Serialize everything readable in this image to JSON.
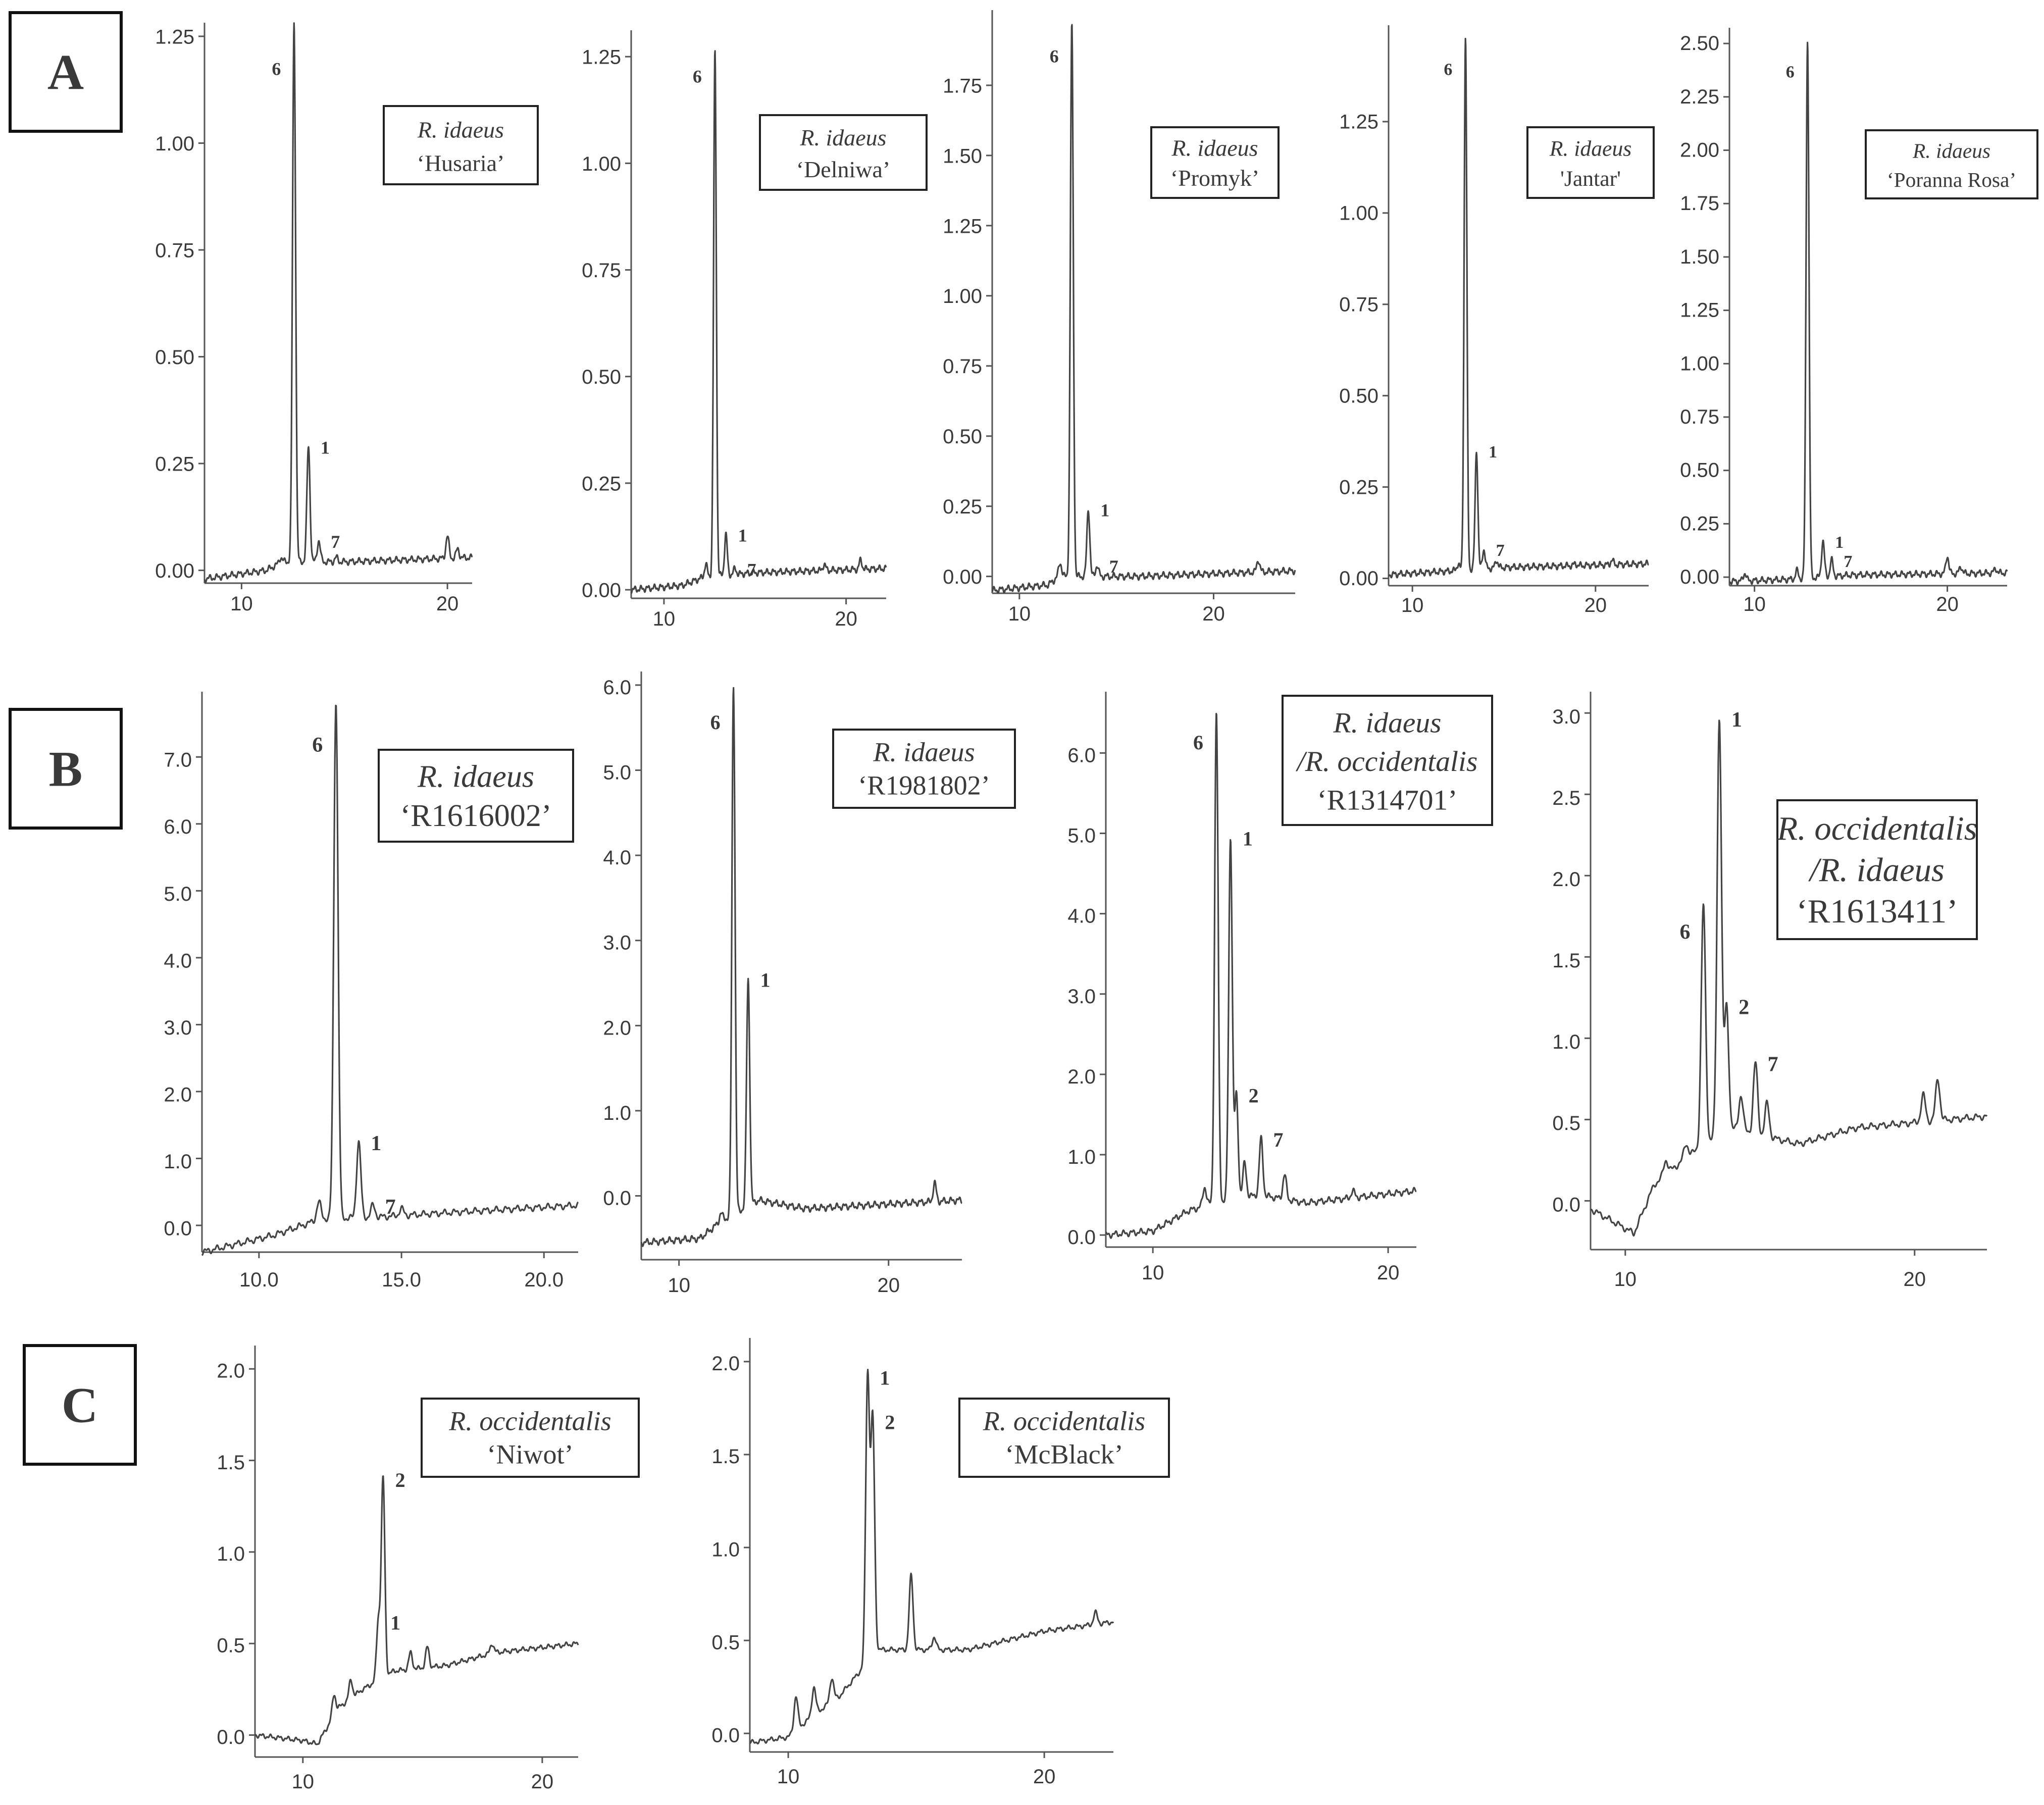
{
  "row_labels": [
    "A",
    "B",
    "C"
  ],
  "chart_data": [
    {
      "type": "line",
      "panel": "A",
      "species": "R. idaeus",
      "cultivar": "‘Husaria’",
      "xlim": [
        8.2,
        21.2
      ],
      "ylim": [
        -0.03,
        1.27
      ],
      "x_ticks": [
        {
          "v": 10,
          "t": "10"
        },
        {
          "v": 20,
          "t": "20"
        }
      ],
      "y_ticks": [
        {
          "v": 0,
          "t": "0.00"
        },
        {
          "v": 0.25,
          "t": "0.25"
        },
        {
          "v": 0.5,
          "t": "0.50"
        },
        {
          "v": 0.75,
          "t": "0.75"
        },
        {
          "v": 1.0,
          "t": "1.00"
        },
        {
          "v": 1.25,
          "t": "1.25"
        }
      ],
      "baseline": [
        [
          8.2,
          -0.02
        ],
        [
          11.2,
          0.0
        ],
        [
          12.0,
          0.02
        ],
        [
          15.0,
          0.02
        ],
        [
          21.2,
          0.03
        ]
      ],
      "peaks": [
        {
          "label": "6",
          "x": 12.55,
          "y": 1.28
        },
        {
          "label": "1",
          "x": 13.25,
          "y": 0.29
        },
        {
          "label": "7",
          "x": 13.75,
          "y": 0.07
        },
        {
          "label": "",
          "x": 11.9,
          "y": 0.03
        },
        {
          "label": "",
          "x": 20.0,
          "y": 0.08
        },
        {
          "label": "",
          "x": 20.5,
          "y": 0.05
        },
        {
          "label": "",
          "x": 14.6,
          "y": 0.03
        }
      ]
    },
    {
      "type": "line",
      "panel": "A",
      "species": "R. idaeus",
      "cultivar": "‘Delniwa’",
      "xlim": [
        8.2,
        22.2
      ],
      "ylim": [
        -0.02,
        1.3
      ],
      "x_ticks": [
        {
          "v": 10,
          "t": "10"
        },
        {
          "v": 20,
          "t": "20"
        }
      ],
      "y_ticks": [
        {
          "v": 0,
          "t": "0.00"
        },
        {
          "v": 0.25,
          "t": "0.25"
        },
        {
          "v": 0.5,
          "t": "0.50"
        },
        {
          "v": 0.75,
          "t": "0.75"
        },
        {
          "v": 1.0,
          "t": "1.00"
        },
        {
          "v": 1.25,
          "t": "1.25"
        }
      ],
      "baseline": [
        [
          8.2,
          0.0
        ],
        [
          11.0,
          0.01
        ],
        [
          12.2,
          0.03
        ],
        [
          15.0,
          0.04
        ],
        [
          22.2,
          0.05
        ]
      ],
      "peaks": [
        {
          "label": "6",
          "x": 12.8,
          "y": 1.26
        },
        {
          "label": "1",
          "x": 13.4,
          "y": 0.13
        },
        {
          "label": "7",
          "x": 13.9,
          "y": 0.05
        },
        {
          "label": "",
          "x": 12.3,
          "y": 0.06
        },
        {
          "label": "",
          "x": 18.8,
          "y": 0.06
        },
        {
          "label": "",
          "x": 20.8,
          "y": 0.07
        }
      ]
    },
    {
      "type": "line",
      "panel": "A",
      "species": "R. idaeus",
      "cultivar": "‘Promyk’",
      "xlim": [
        8.6,
        24.2
      ],
      "ylim": [
        -0.06,
        2.0
      ],
      "x_ticks": [
        {
          "v": 10,
          "t": "10"
        },
        {
          "v": 20,
          "t": "20"
        }
      ],
      "y_ticks": [
        {
          "v": 0,
          "t": "0.00"
        },
        {
          "v": 0.25,
          "t": "0.25"
        },
        {
          "v": 0.5,
          "t": "0.50"
        },
        {
          "v": 0.75,
          "t": "0.75"
        },
        {
          "v": 1.0,
          "t": "1.00"
        },
        {
          "v": 1.25,
          "t": "1.25"
        },
        {
          "v": 1.5,
          "t": "1.50"
        },
        {
          "v": 1.75,
          "t": "1.75"
        }
      ],
      "baseline": [
        [
          8.6,
          -0.05
        ],
        [
          11.5,
          -0.03
        ],
        [
          12.0,
          0.0
        ],
        [
          16.0,
          0.0
        ],
        [
          24.2,
          0.02
        ]
      ],
      "peaks": [
        {
          "label": "6",
          "x": 12.7,
          "y": 1.97
        },
        {
          "label": "1",
          "x": 13.55,
          "y": 0.24
        },
        {
          "label": "7",
          "x": 14.0,
          "y": 0.04
        },
        {
          "label": "",
          "x": 12.1,
          "y": 0.05
        },
        {
          "label": "",
          "x": 22.3,
          "y": 0.06
        }
      ]
    },
    {
      "type": "line",
      "panel": "A",
      "species": "R. idaeus",
      "cultivar": "'Jantar'",
      "xlim": [
        8.7,
        22.9
      ],
      "ylim": [
        -0.02,
        1.5
      ],
      "x_ticks": [
        {
          "v": 10,
          "t": "10"
        },
        {
          "v": 20,
          "t": "20"
        }
      ],
      "y_ticks": [
        {
          "v": 0,
          "t": "0.00"
        },
        {
          "v": 0.25,
          "t": "0.25"
        },
        {
          "v": 0.5,
          "t": "0.50"
        },
        {
          "v": 0.75,
          "t": "0.75"
        },
        {
          "v": 1.0,
          "t": "1.00"
        },
        {
          "v": 1.25,
          "t": "1.25"
        }
      ],
      "baseline": [
        [
          8.7,
          0.01
        ],
        [
          12.0,
          0.02
        ],
        [
          15.0,
          0.03
        ],
        [
          22.9,
          0.04
        ]
      ],
      "peaks": [
        {
          "label": "6",
          "x": 12.9,
          "y": 1.48
        },
        {
          "label": "1",
          "x": 13.5,
          "y": 0.35
        },
        {
          "label": "7",
          "x": 13.9,
          "y": 0.08
        },
        {
          "label": "",
          "x": 12.5,
          "y": 0.04
        },
        {
          "label": "",
          "x": 14.6,
          "y": 0.05
        },
        {
          "label": "",
          "x": 20.9,
          "y": 0.05
        },
        {
          "label": "",
          "x": 18.9,
          "y": 0.04
        }
      ]
    },
    {
      "type": "line",
      "panel": "A",
      "species": "R. idaeus",
      "cultivar": "‘Poranna Rosa’",
      "xlim": [
        8.7,
        23.1
      ],
      "ylim": [
        -0.04,
        2.55
      ],
      "x_ticks": [
        {
          "v": 10,
          "t": "10"
        },
        {
          "v": 20,
          "t": "20"
        }
      ],
      "y_ticks": [
        {
          "v": 0,
          "t": "0.00"
        },
        {
          "v": 0.25,
          "t": "0.25"
        },
        {
          "v": 0.5,
          "t": "0.50"
        },
        {
          "v": 0.75,
          "t": "0.75"
        },
        {
          "v": 1.0,
          "t": "1.00"
        },
        {
          "v": 1.25,
          "t": "1.25"
        },
        {
          "v": 1.5,
          "t": "1.50"
        },
        {
          "v": 1.75,
          "t": "1.75"
        },
        {
          "v": 2.0,
          "t": "2.00"
        },
        {
          "v": 2.25,
          "t": "2.25"
        },
        {
          "v": 2.5,
          "t": "2.50"
        }
      ],
      "baseline": [
        [
          8.7,
          -0.02
        ],
        [
          12.0,
          -0.01
        ],
        [
          15.0,
          0.01
        ],
        [
          23.1,
          0.02
        ]
      ],
      "peaks": [
        {
          "label": "6",
          "x": 12.75,
          "y": 2.52
        },
        {
          "label": "1",
          "x": 13.55,
          "y": 0.17
        },
        {
          "label": "7",
          "x": 14.0,
          "y": 0.08
        },
        {
          "label": "",
          "x": 12.2,
          "y": 0.03
        },
        {
          "label": "",
          "x": 9.5,
          "y": 0.02
        },
        {
          "label": "",
          "x": 20.0,
          "y": 0.1
        },
        {
          "label": "",
          "x": 20.7,
          "y": 0.05
        },
        {
          "label": "",
          "x": 22.5,
          "y": 0.04
        }
      ]
    },
    {
      "type": "line",
      "panel": "B",
      "species": "R. idaeus",
      "cultivar": "‘R1616002’",
      "xlim": [
        8.0,
        21.2
      ],
      "ylim": [
        -0.4,
        7.9
      ],
      "x_ticks": [
        {
          "v": 10,
          "t": "10.0"
        },
        {
          "v": 15,
          "t": "15.0"
        },
        {
          "v": 20,
          "t": "20.0"
        }
      ],
      "y_ticks": [
        {
          "v": 0,
          "t": "0.0"
        },
        {
          "v": 1,
          "t": "1.0"
        },
        {
          "v": 2,
          "t": "2.0"
        },
        {
          "v": 3,
          "t": "3.0"
        },
        {
          "v": 4,
          "t": "4.0"
        },
        {
          "v": 5,
          "t": "5.0"
        },
        {
          "v": 6,
          "t": "6.0"
        },
        {
          "v": 7,
          "t": "7.0"
        }
      ],
      "baseline": [
        [
          8.0,
          -0.4
        ],
        [
          10.5,
          -0.15
        ],
        [
          12.2,
          0.1
        ],
        [
          14.0,
          0.12
        ],
        [
          17.0,
          0.2
        ],
        [
          21.2,
          0.3
        ]
      ],
      "peaks": [
        {
          "label": "6",
          "x": 12.7,
          "y": 7.85
        },
        {
          "label": "1",
          "x": 13.5,
          "y": 1.25
        },
        {
          "label": "7",
          "x": 14.0,
          "y": 0.3
        },
        {
          "label": "",
          "x": 12.1,
          "y": 0.35
        },
        {
          "label": "",
          "x": 15.0,
          "y": 0.25
        }
      ]
    },
    {
      "type": "line",
      "panel": "B",
      "species": "R. idaeus",
      "cultivar": "‘R1981802’",
      "xlim": [
        8.2,
        23.5
      ],
      "ylim": [
        -0.75,
        6.1
      ],
      "x_ticks": [
        {
          "v": 10,
          "t": "10"
        },
        {
          "v": 20,
          "t": "20"
        }
      ],
      "y_ticks": [
        {
          "v": 0,
          "t": "0.0"
        },
        {
          "v": 1,
          "t": "1.0"
        },
        {
          "v": 2,
          "t": "2.0"
        },
        {
          "v": 3,
          "t": "3.0"
        },
        {
          "v": 4,
          "t": "4.0"
        },
        {
          "v": 5,
          "t": "5.0"
        },
        {
          "v": 6,
          "t": "6.0"
        }
      ],
      "baseline": [
        [
          8.2,
          -0.55
        ],
        [
          11.0,
          -0.5
        ],
        [
          12.0,
          -0.3
        ],
        [
          13.8,
          -0.05
        ],
        [
          16.0,
          -0.15
        ],
        [
          23.5,
          -0.05
        ]
      ],
      "peaks": [
        {
          "label": "6",
          "x": 12.6,
          "y": 6.0
        },
        {
          "label": "1",
          "x": 13.3,
          "y": 2.55
        },
        {
          "label": "",
          "x": 12.0,
          "y": -0.2
        },
        {
          "label": "",
          "x": 22.2,
          "y": 0.15
        }
      ]
    },
    {
      "type": "line",
      "panel": "B",
      "species": "R. idaeus",
      "species2": "/R. occidentalis",
      "cultivar": "‘R1314701’",
      "xlim": [
        8.0,
        21.2
      ],
      "ylim": [
        -0.15,
        6.7
      ],
      "x_ticks": [
        {
          "v": 10,
          "t": "10"
        },
        {
          "v": 20,
          "t": "20"
        }
      ],
      "y_ticks": [
        {
          "v": 0,
          "t": "0.0"
        },
        {
          "v": 1,
          "t": "1.0"
        },
        {
          "v": 2,
          "t": "2.0"
        },
        {
          "v": 3,
          "t": "3.0"
        },
        {
          "v": 4,
          "t": "4.0"
        },
        {
          "v": 5,
          "t": "5.0"
        },
        {
          "v": 6,
          "t": "6.0"
        }
      ],
      "baseline": [
        [
          8.0,
          0.0
        ],
        [
          10.0,
          0.05
        ],
        [
          11.5,
          0.3
        ],
        [
          12.6,
          0.4
        ],
        [
          14.5,
          0.5
        ],
        [
          16.5,
          0.4
        ],
        [
          21.2,
          0.55
        ]
      ],
      "peaks": [
        {
          "label": "6",
          "x": 12.7,
          "y": 6.5
        },
        {
          "label": "1",
          "x": 13.3,
          "y": 4.95
        },
        {
          "label": "2",
          "x": 13.55,
          "y": 1.75
        },
        {
          "label": "7",
          "x": 14.6,
          "y": 1.2
        },
        {
          "label": "",
          "x": 12.2,
          "y": 0.6
        },
        {
          "label": "",
          "x": 13.9,
          "y": 0.9
        },
        {
          "label": "",
          "x": 15.6,
          "y": 0.75
        },
        {
          "label": "",
          "x": 18.5,
          "y": 0.55
        }
      ]
    },
    {
      "type": "line",
      "panel": "B",
      "species": "R. occidentalis",
      "species2": "/R. idaeus",
      "cultivar": "‘R1613411’",
      "xlim": [
        8.8,
        22.5
      ],
      "ylim": [
        -0.3,
        3.1
      ],
      "x_ticks": [
        {
          "v": 10,
          "t": "10"
        },
        {
          "v": 20,
          "t": "20"
        }
      ],
      "y_ticks": [
        {
          "v": 0,
          "t": "0.0"
        },
        {
          "v": 0.5,
          "t": "0.5"
        },
        {
          "v": 1.0,
          "t": "1.0"
        },
        {
          "v": 1.5,
          "t": "1.5"
        },
        {
          "v": 2.0,
          "t": "2.0"
        },
        {
          "v": 2.5,
          "t": "2.5"
        },
        {
          "v": 3.0,
          "t": "3.0"
        }
      ],
      "baseline": [
        [
          8.8,
          -0.05
        ],
        [
          9.8,
          -0.15
        ],
        [
          10.3,
          -0.2
        ],
        [
          11.0,
          0.1
        ],
        [
          12.0,
          0.25
        ],
        [
          13.5,
          0.45
        ],
        [
          16.0,
          0.35
        ],
        [
          18.0,
          0.45
        ],
        [
          22.5,
          0.52
        ]
      ],
      "peaks": [
        {
          "label": "6",
          "x": 12.7,
          "y": 1.82
        },
        {
          "label": "1",
          "x": 13.25,
          "y": 2.97
        },
        {
          "label": "2",
          "x": 13.5,
          "y": 1.2
        },
        {
          "label": "7",
          "x": 14.5,
          "y": 0.85
        },
        {
          "label": "",
          "x": 11.4,
          "y": 0.25
        },
        {
          "label": "",
          "x": 12.1,
          "y": 0.35
        },
        {
          "label": "",
          "x": 14.0,
          "y": 0.65
        },
        {
          "label": "",
          "x": 14.9,
          "y": 0.6
        },
        {
          "label": "",
          "x": 20.3,
          "y": 0.65
        },
        {
          "label": "",
          "x": 20.8,
          "y": 0.75
        }
      ]
    },
    {
      "type": "line",
      "panel": "C",
      "species": "R. occidentalis",
      "cultivar": "‘Niwot’",
      "xlim": [
        8.0,
        21.5
      ],
      "ylim": [
        -0.12,
        2.1
      ],
      "x_ticks": [
        {
          "v": 10,
          "t": "10"
        },
        {
          "v": 20,
          "t": "20"
        }
      ],
      "y_ticks": [
        {
          "v": 0,
          "t": "0.0"
        },
        {
          "v": 0.5,
          "t": "0.5"
        },
        {
          "v": 1.0,
          "t": "1.0"
        },
        {
          "v": 1.5,
          "t": "1.5"
        },
        {
          "v": 2.0,
          "t": "2.0"
        }
      ],
      "baseline": [
        [
          8.0,
          0.0
        ],
        [
          10.0,
          -0.03
        ],
        [
          10.6,
          -0.05
        ],
        [
          11.5,
          0.15
        ],
        [
          12.5,
          0.25
        ],
        [
          13.8,
          0.35
        ],
        [
          16.0,
          0.38
        ],
        [
          18.0,
          0.45
        ],
        [
          21.5,
          0.5
        ]
      ],
      "peaks": [
        {
          "label": "2",
          "x": 13.35,
          "y": 1.4
        },
        {
          "label": "1",
          "x": 13.15,
          "y": 0.62
        },
        {
          "label": "",
          "x": 11.3,
          "y": 0.22
        },
        {
          "label": "",
          "x": 12.0,
          "y": 0.3
        },
        {
          "label": "",
          "x": 14.5,
          "y": 0.45
        },
        {
          "label": "",
          "x": 15.2,
          "y": 0.48
        },
        {
          "label": "",
          "x": 17.9,
          "y": 0.5
        }
      ]
    },
    {
      "type": "line",
      "panel": "C",
      "species": "R. occidentalis",
      "cultivar": "‘McBlack’",
      "xlim": [
        8.5,
        22.7
      ],
      "ylim": [
        -0.1,
        2.1
      ],
      "x_ticks": [
        {
          "v": 10,
          "t": "10"
        },
        {
          "v": 20,
          "t": "20"
        }
      ],
      "y_ticks": [
        {
          "v": 0,
          "t": "0.0"
        },
        {
          "v": 0.5,
          "t": "0.5"
        },
        {
          "v": 1.0,
          "t": "1.0"
        },
        {
          "v": 1.5,
          "t": "1.5"
        },
        {
          "v": 2.0,
          "t": "2.0"
        }
      ],
      "baseline": [
        [
          8.5,
          -0.05
        ],
        [
          10.0,
          -0.02
        ],
        [
          11.0,
          0.1
        ],
        [
          12.0,
          0.2
        ],
        [
          13.5,
          0.45
        ],
        [
          15.0,
          0.45
        ],
        [
          17.0,
          0.45
        ],
        [
          20.0,
          0.55
        ],
        [
          22.7,
          0.6
        ]
      ],
      "peaks": [
        {
          "label": "1",
          "x": 13.1,
          "y": 1.92
        },
        {
          "label": "2",
          "x": 13.3,
          "y": 1.68
        },
        {
          "label": "",
          "x": 10.3,
          "y": 0.2
        },
        {
          "label": "",
          "x": 11.0,
          "y": 0.25
        },
        {
          "label": "",
          "x": 11.7,
          "y": 0.3
        },
        {
          "label": "",
          "x": 14.8,
          "y": 0.85
        },
        {
          "label": "",
          "x": 15.7,
          "y": 0.52
        },
        {
          "label": "",
          "x": 22.0,
          "y": 0.65
        }
      ]
    }
  ]
}
